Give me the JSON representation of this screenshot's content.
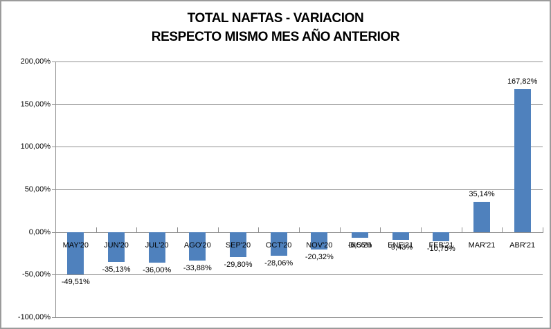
{
  "chart_data": {
    "type": "bar",
    "title_lines": [
      "TOTAL NAFTAS - VARIACION",
      "RESPECTO MISMO MES AÑO ANTERIOR"
    ],
    "categories": [
      "MAY'20",
      "JUN'20",
      "JUL'20",
      "AGO'20",
      "SEP'20",
      "OCT'20",
      "NOV'20",
      "DIC'20",
      "ENE'21",
      "FEB'21",
      "MAR'21",
      "ABR'21"
    ],
    "values": [
      -49.51,
      -35.13,
      -36.0,
      -33.88,
      -29.8,
      -28.06,
      -20.32,
      -6.56,
      -9.43,
      -10.75,
      35.14,
      167.82
    ],
    "value_labels": [
      "-49,51%",
      "-35,13%",
      "-36,00%",
      "-33,88%",
      "-29,80%",
      "-28,06%",
      "-20,32%",
      "-6,56%",
      "-9,43%",
      "-10,75%",
      "35,14%",
      "167,82%"
    ],
    "xlabel": "",
    "ylabel": "",
    "y_axis": {
      "tick_labels": [
        "200,00%",
        "150,00%",
        "100,00%",
        "50,00%",
        "0,00%",
        "-50,00%",
        "-100,00%"
      ],
      "tick_values": [
        200,
        150,
        100,
        50,
        0,
        -50,
        -100
      ],
      "min": -100,
      "max": 200,
      "step": 50
    },
    "grid": true,
    "legend": null,
    "styles": {
      "bar_color": "#4F81BD",
      "gridline_color": "#8F8F8F",
      "axis_color": "#8F8F8F",
      "text_color": "#000000",
      "frame_border_color": "#9B9B9B",
      "background": "#FFFFFF"
    }
  }
}
